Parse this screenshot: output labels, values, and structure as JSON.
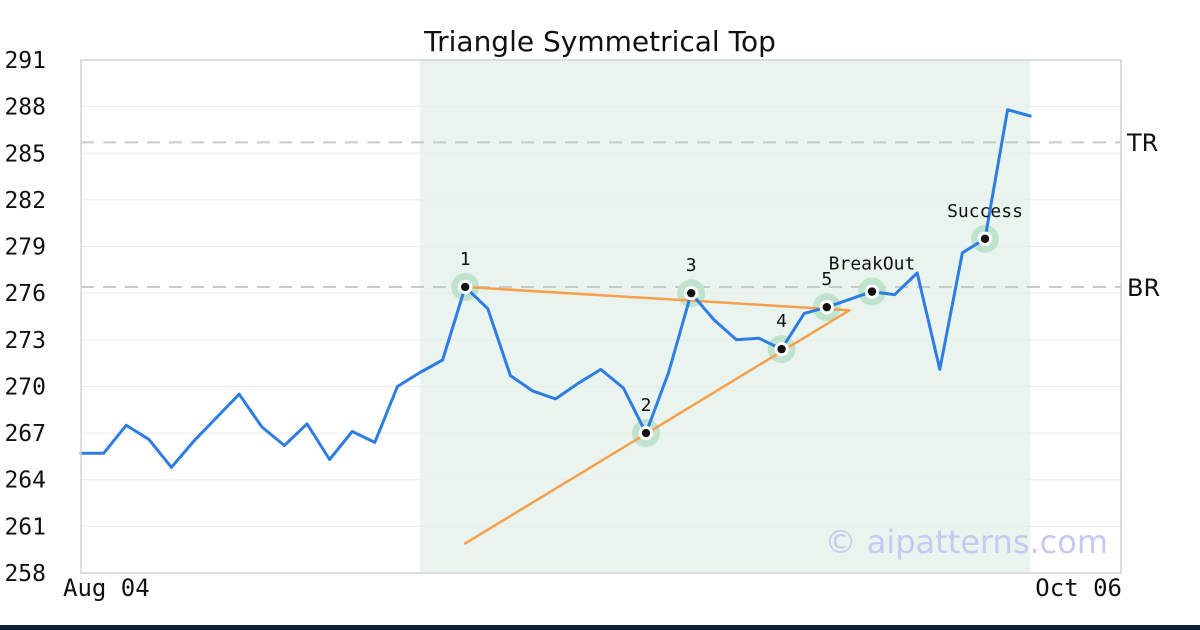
{
  "chart_data": {
    "type": "line",
    "title": "Triangle Symmetrical Top",
    "watermark": "© aipatterns.com",
    "x_range_labels": [
      "Aug 04",
      "Oct 06"
    ],
    "ylim": [
      258,
      291
    ],
    "y_ticks": [
      291,
      288,
      285,
      282,
      279,
      276,
      273,
      270,
      267,
      264,
      261,
      258
    ],
    "grid": "horizontal",
    "legend": "none",
    "series": [
      {
        "name": "price",
        "values": [
          265.7,
          265.7,
          267.5,
          266.6,
          264.8,
          266.5,
          268.0,
          269.5,
          267.4,
          266.2,
          267.6,
          265.3,
          267.1,
          266.4,
          270.0,
          270.9,
          271.7,
          276.4,
          275.0,
          270.7,
          269.7,
          269.2,
          270.2,
          271.1,
          269.9,
          267.0,
          270.9,
          276.0,
          274.3,
          273.0,
          273.1,
          272.4,
          274.7,
          275.1,
          275.6,
          276.1,
          275.9,
          277.3,
          271.1,
          278.6,
          279.5,
          287.8,
          287.4
        ]
      }
    ],
    "trendlines": [
      {
        "name": "resistance-trendline",
        "from_index": 17,
        "from_value": 276.4,
        "to_index": 34,
        "to_value": 274.9
      },
      {
        "name": "support-trendline",
        "from_index": 17,
        "from_value": 259.9,
        "to_index": 34,
        "to_value": 274.9
      }
    ],
    "levels": [
      {
        "label": "TR",
        "value": 285.7
      },
      {
        "label": "BR",
        "value": 276.4
      }
    ],
    "annotations": [
      {
        "label": "1",
        "index": 17,
        "value": 276.4
      },
      {
        "label": "2",
        "index": 25,
        "value": 267.0
      },
      {
        "label": "3",
        "index": 27,
        "value": 276.0
      },
      {
        "label": "4",
        "index": 31,
        "value": 272.4
      },
      {
        "label": "5",
        "index": 33,
        "value": 275.1
      },
      {
        "label": "BreakOut",
        "index": 35,
        "value": 276.1
      },
      {
        "label": "Success",
        "index": 40,
        "value": 279.5
      }
    ],
    "pattern_zone": {
      "start_index": 15,
      "end_index": 42
    },
    "colors": {
      "price_line": "#2e7de3",
      "trendline": "#f7a04b",
      "pattern_zone_fill": "#eaf4ef",
      "level_line": "#c9c9c9",
      "gridline": "#ebebeb",
      "axis_border": "#d3d3d3",
      "marker_halo": "#bfe3cd",
      "marker_dot": "#111111",
      "text": "#111111",
      "watermark": "#c7c9f0",
      "accent_bar": "#0d2137"
    }
  }
}
